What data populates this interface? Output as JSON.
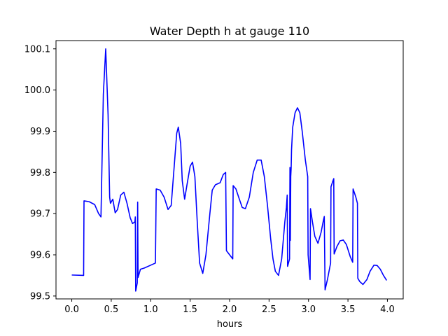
{
  "chart_data": {
    "type": "line",
    "title": "Water Depth h at gauge 110",
    "xlabel": "hours",
    "ylabel": "",
    "xlim": [
      -0.2,
      4.2
    ],
    "ylim": [
      99.493,
      100.12
    ],
    "x_ticks": [
      0.0,
      0.5,
      1.0,
      1.5,
      2.0,
      2.5,
      3.0,
      3.5,
      4.0
    ],
    "x_tick_labels": [
      "0.0",
      "0.5",
      "1.0",
      "1.5",
      "2.0",
      "2.5",
      "3.0",
      "3.5",
      "4.0"
    ],
    "y_ticks": [
      99.5,
      99.6,
      99.7,
      99.8,
      99.9,
      100.0,
      100.1
    ],
    "y_tick_labels": [
      "99.5",
      "99.6",
      "99.7",
      "99.8",
      "99.9",
      "100.0",
      "100.1"
    ],
    "grid": false,
    "series": [
      {
        "color": "#0000ff",
        "points": [
          [
            0.0,
            99.551
          ],
          [
            0.15,
            99.55
          ],
          [
            0.155,
            99.731
          ],
          [
            0.22,
            99.729
          ],
          [
            0.29,
            99.722
          ],
          [
            0.34,
            99.7
          ],
          [
            0.37,
            99.692
          ],
          [
            0.4,
            99.99
          ],
          [
            0.43,
            100.1
          ],
          [
            0.46,
            99.94
          ],
          [
            0.48,
            99.74
          ],
          [
            0.49,
            99.725
          ],
          [
            0.52,
            99.735
          ],
          [
            0.55,
            99.702
          ],
          [
            0.58,
            99.71
          ],
          [
            0.62,
            99.745
          ],
          [
            0.66,
            99.752
          ],
          [
            0.7,
            99.725
          ],
          [
            0.74,
            99.69
          ],
          [
            0.77,
            99.676
          ],
          [
            0.8,
            99.68
          ],
          [
            0.805,
            99.692
          ],
          [
            0.81,
            99.512
          ],
          [
            0.83,
            99.532
          ],
          [
            0.835,
            99.728
          ],
          [
            0.84,
            99.545
          ],
          [
            0.87,
            99.565
          ],
          [
            0.92,
            99.568
          ],
          [
            1.06,
            99.58
          ],
          [
            1.07,
            99.76
          ],
          [
            1.12,
            99.757
          ],
          [
            1.17,
            99.74
          ],
          [
            1.22,
            99.71
          ],
          [
            1.26,
            99.72
          ],
          [
            1.3,
            99.82
          ],
          [
            1.33,
            99.895
          ],
          [
            1.35,
            99.91
          ],
          [
            1.38,
            99.87
          ],
          [
            1.4,
            99.78
          ],
          [
            1.43,
            99.735
          ],
          [
            1.46,
            99.77
          ],
          [
            1.5,
            99.815
          ],
          [
            1.53,
            99.825
          ],
          [
            1.56,
            99.79
          ],
          [
            1.59,
            99.68
          ],
          [
            1.62,
            99.58
          ],
          [
            1.66,
            99.555
          ],
          [
            1.7,
            99.6
          ],
          [
            1.75,
            99.7
          ],
          [
            1.78,
            99.757
          ],
          [
            1.82,
            99.77
          ],
          [
            1.88,
            99.775
          ],
          [
            1.92,
            99.795
          ],
          [
            1.95,
            99.8
          ],
          [
            1.96,
            99.61
          ],
          [
            2.04,
            99.59
          ],
          [
            2.045,
            99.768
          ],
          [
            2.08,
            99.76
          ],
          [
            2.12,
            99.737
          ],
          [
            2.16,
            99.715
          ],
          [
            2.2,
            99.712
          ],
          [
            2.25,
            99.74
          ],
          [
            2.3,
            99.8
          ],
          [
            2.35,
            99.83
          ],
          [
            2.4,
            99.83
          ],
          [
            2.44,
            99.79
          ],
          [
            2.48,
            99.72
          ],
          [
            2.52,
            99.64
          ],
          [
            2.55,
            99.59
          ],
          [
            2.58,
            99.56
          ],
          [
            2.62,
            99.55
          ],
          [
            2.66,
            99.59
          ],
          [
            2.7,
            99.68
          ],
          [
            2.72,
            99.715
          ],
          [
            2.73,
            99.745
          ],
          [
            2.735,
            99.572
          ],
          [
            2.76,
            99.59
          ],
          [
            2.765,
            99.812
          ],
          [
            2.77,
            99.635
          ],
          [
            2.775,
            99.79
          ],
          [
            2.78,
            99.81
          ],
          [
            2.785,
            99.855
          ],
          [
            2.8,
            99.91
          ],
          [
            2.83,
            99.945
          ],
          [
            2.86,
            99.957
          ],
          [
            2.89,
            99.945
          ],
          [
            2.92,
            99.9
          ],
          [
            2.96,
            99.83
          ],
          [
            2.99,
            99.79
          ],
          [
            2.995,
            99.6
          ],
          [
            3.02,
            99.54
          ],
          [
            3.025,
            99.712
          ],
          [
            3.05,
            99.68
          ],
          [
            3.08,
            99.645
          ],
          [
            3.12,
            99.628
          ],
          [
            3.16,
            99.655
          ],
          [
            3.19,
            99.685
          ],
          [
            3.2,
            99.693
          ],
          [
            3.21,
            99.515
          ],
          [
            3.24,
            99.54
          ],
          [
            3.28,
            99.58
          ],
          [
            3.285,
            99.765
          ],
          [
            3.31,
            99.78
          ],
          [
            3.32,
            99.785
          ],
          [
            3.325,
            99.602
          ],
          [
            3.36,
            99.62
          ],
          [
            3.4,
            99.634
          ],
          [
            3.44,
            99.636
          ],
          [
            3.48,
            99.625
          ],
          [
            3.53,
            99.595
          ],
          [
            3.56,
            99.582
          ],
          [
            3.565,
            99.76
          ],
          [
            3.6,
            99.74
          ],
          [
            3.62,
            99.725
          ],
          [
            3.625,
            99.543
          ],
          [
            3.65,
            99.535
          ],
          [
            3.69,
            99.528
          ],
          [
            3.74,
            99.54
          ],
          [
            3.78,
            99.56
          ],
          [
            3.83,
            99.575
          ],
          [
            3.87,
            99.574
          ],
          [
            3.91,
            99.565
          ],
          [
            3.95,
            99.55
          ],
          [
            3.99,
            99.538
          ]
        ]
      }
    ]
  }
}
